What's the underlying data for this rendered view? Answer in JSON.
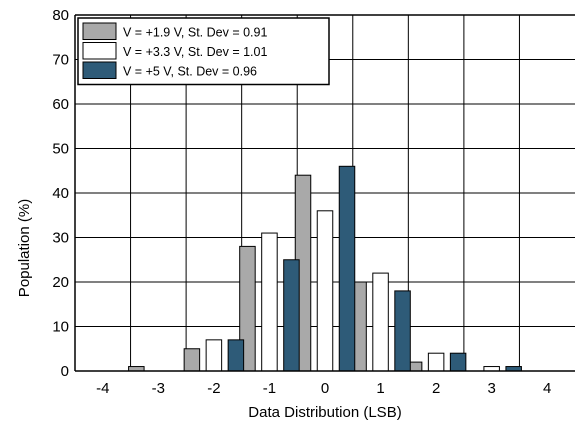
{
  "chart_data": {
    "type": "bar",
    "title": "",
    "xlabel": "Data Distribution (LSB)",
    "ylabel": "Population (%)",
    "categories": [
      "-4",
      "-3",
      "-2",
      "-1",
      "0",
      "1",
      "2",
      "3",
      "4"
    ],
    "ylim": [
      0,
      80
    ],
    "yticks": [
      "0",
      "10",
      "20",
      "30",
      "40",
      "50",
      "60",
      "70",
      "80"
    ],
    "grid": true,
    "legend": {
      "placement": "top-left"
    },
    "series": [
      {
        "name": "V = +1.9 V, St. Dev = 0.91",
        "color": "#a9a9a9",
        "values": [
          0,
          1,
          5,
          28,
          44,
          20,
          2,
          0,
          0
        ]
      },
      {
        "name": "V = +3.3 V, St. Dev = 1.01",
        "color": "#ffffff",
        "values": [
          0,
          0,
          7,
          31,
          36,
          22,
          4,
          1,
          0
        ]
      },
      {
        "name": "V = +5 V, St. Dev = 0.96",
        "color": "#2e5b78",
        "values": [
          0,
          0,
          7,
          25,
          46,
          18,
          4,
          1,
          0
        ]
      }
    ]
  }
}
